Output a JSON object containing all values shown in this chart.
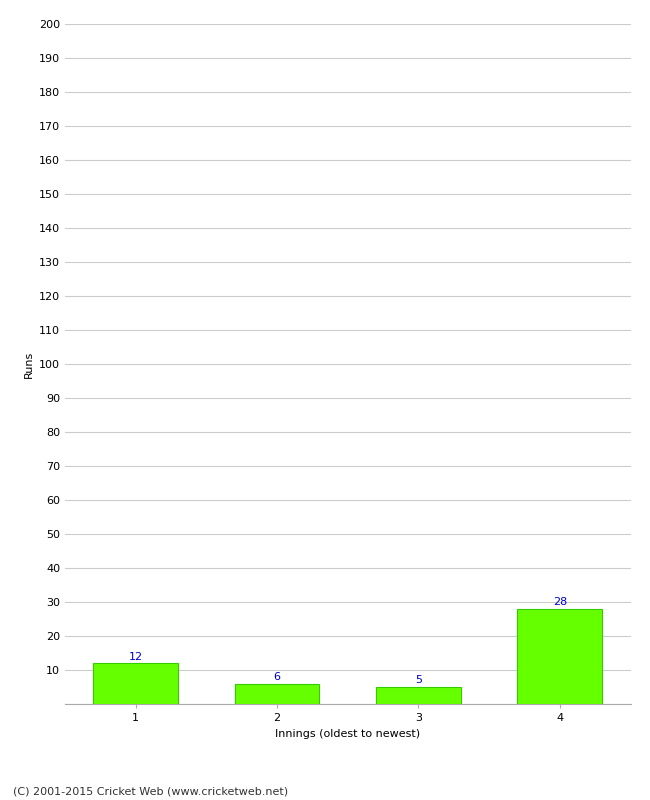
{
  "categories": [
    "1",
    "2",
    "3",
    "4"
  ],
  "values": [
    12,
    6,
    5,
    28
  ],
  "bar_color": "#66ff00",
  "bar_edge_color": "#33cc00",
  "value_label_color": "#0000cc",
  "xlabel": "Innings (oldest to newest)",
  "ylabel": "Runs",
  "ylim": [
    0,
    200
  ],
  "yticks": [
    0,
    10,
    20,
    30,
    40,
    50,
    60,
    70,
    80,
    90,
    100,
    110,
    120,
    130,
    140,
    150,
    160,
    170,
    180,
    190,
    200
  ],
  "background_color": "#ffffff",
  "grid_color": "#cccccc",
  "footer_text": "(C) 2001-2015 Cricket Web (www.cricketweb.net)",
  "value_fontsize": 8,
  "axis_label_fontsize": 8,
  "tick_fontsize": 8,
  "footer_fontsize": 8,
  "bar_width": 0.6
}
